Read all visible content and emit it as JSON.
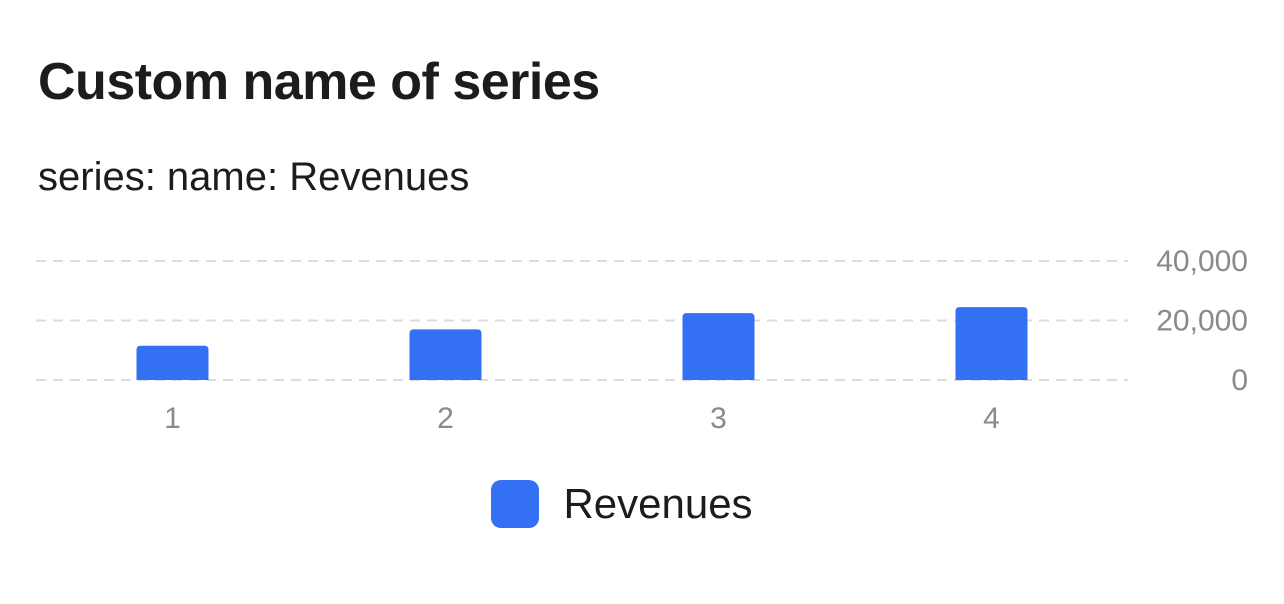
{
  "chart_data": {
    "type": "bar",
    "title": "Custom name of series",
    "subtitle": "series: name: Revenues",
    "categories": [
      "1",
      "2",
      "3",
      "4"
    ],
    "series": [
      {
        "name": "Revenues",
        "values": [
          11500,
          17000,
          22500,
          24500
        ],
        "color": "#3470f3"
      }
    ],
    "y_ticks": [
      "0",
      "20,000",
      "40,000"
    ],
    "y_tick_values": [
      0,
      20000,
      40000
    ],
    "ylim": [
      0,
      40000
    ],
    "yaxis_position": "right",
    "grid": true,
    "legend_position": "bottom-center"
  }
}
